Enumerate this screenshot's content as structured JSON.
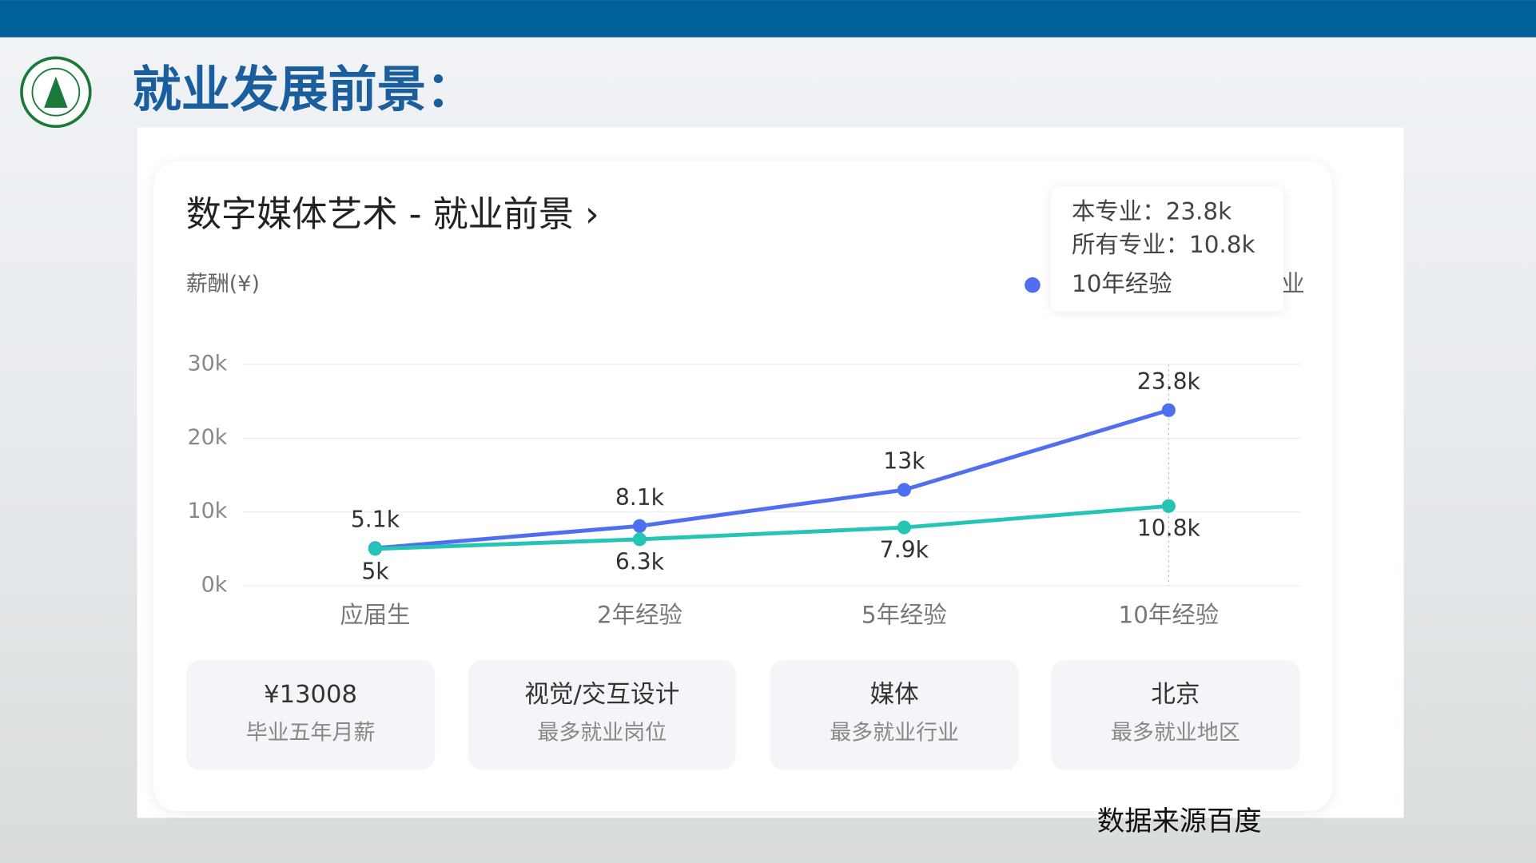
{
  "header": {
    "title": "就业发展前景："
  },
  "chart_data": {
    "type": "line",
    "title": "数字媒体艺术 - 就业前景 ›",
    "y_label": "薪酬(¥)",
    "categories": [
      "应届生",
      "2年经验",
      "5年经验",
      "10年经验"
    ],
    "series": [
      {
        "name": "本专业",
        "color": "#4f6ef0",
        "values": [
          5.1,
          8.1,
          13,
          23.8
        ],
        "value_labels": [
          "5.1k",
          "8.1k",
          "13k",
          "23.8k"
        ]
      },
      {
        "name": "所有专业",
        "color": "#25c4b4",
        "values": [
          5,
          6.3,
          7.9,
          10.8
        ],
        "value_labels": [
          "5k",
          "6.3k",
          "7.9k",
          "10.8k"
        ]
      }
    ],
    "ylim": [
      0,
      30
    ],
    "yticks": [
      {
        "value": 0,
        "label": "0k"
      },
      {
        "value": 10,
        "label": "10k"
      },
      {
        "value": 20,
        "label": "20k"
      },
      {
        "value": 30,
        "label": "30k"
      }
    ],
    "grid": true,
    "tooltip": {
      "lines": [
        "本专业：23.8k",
        "所有专业：10.8k"
      ],
      "legend": "10年经验"
    },
    "legend_fragment": "业"
  },
  "stats": [
    {
      "value": "¥13008",
      "label": "毕业五年月薪"
    },
    {
      "value": "视觉/交互设计",
      "label": "最多就业岗位"
    },
    {
      "value": "媒体",
      "label": "最多就业行业"
    },
    {
      "value": "北京",
      "label": "最多就业地区"
    }
  ],
  "footer": {
    "source": "数据来源百度"
  }
}
